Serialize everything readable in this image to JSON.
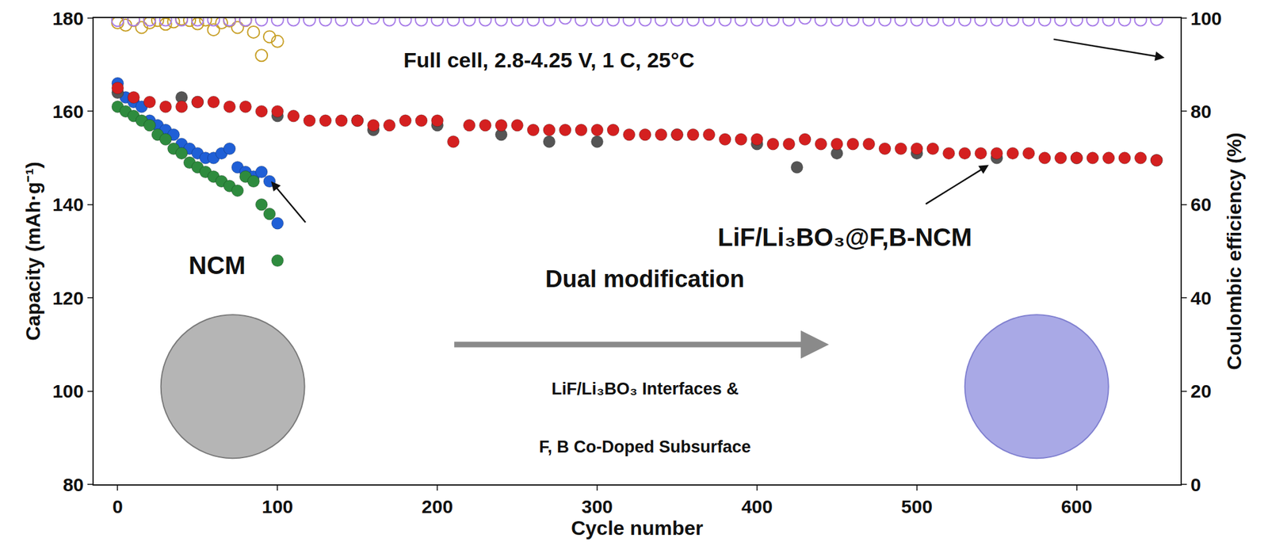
{
  "chart_data": {
    "type": "scatter",
    "x_label": "Cycle number",
    "y_label": "Capacity (mAh·g⁻¹)",
    "y2_label": "Coulombic efficiency (%)",
    "xlim": [
      -15,
      665
    ],
    "xticks": [
      0,
      100,
      200,
      300,
      400,
      500,
      600
    ],
    "ylim": [
      80,
      180
    ],
    "yticks": [
      80,
      100,
      120,
      140,
      160,
      180
    ],
    "y2lim": [
      0,
      100
    ],
    "y2ticks": [
      0,
      20,
      40,
      60,
      80,
      100
    ],
    "grid": false,
    "annotations": [
      {
        "text": "Full cell, 2.8-4.25 V, 1 C, 25°C"
      },
      {
        "text": "NCM"
      },
      {
        "text": "LiF/Li₃BO₃@F,B-NCM"
      },
      {
        "text": "Dual modification"
      },
      {
        "text": "LiF/Li₃BO₃ Interfaces &"
      },
      {
        "text": "F, B Co-Doped Subsurface"
      }
    ],
    "series": [
      {
        "color": "#1f5fd6",
        "marker": "circle",
        "axis": "y",
        "x": [
          0,
          5,
          10,
          15,
          20,
          25,
          30,
          35,
          40,
          45,
          50,
          55,
          60,
          65,
          70,
          75,
          80,
          85,
          90,
          95,
          100
        ],
        "values": [
          166,
          163,
          162,
          161,
          158,
          157,
          156,
          155,
          153,
          152,
          151,
          150,
          150,
          151,
          152,
          148,
          147,
          146,
          147,
          145,
          136
        ]
      },
      {
        "color": "#2e8b3e",
        "marker": "circle",
        "axis": "y",
        "x": [
          0,
          5,
          10,
          15,
          20,
          25,
          30,
          35,
          40,
          45,
          50,
          55,
          60,
          65,
          70,
          75,
          80,
          85,
          90,
          95,
          100
        ],
        "values": [
          161,
          160,
          159,
          158,
          157,
          155,
          154,
          152,
          151,
          149,
          148,
          147,
          146,
          145,
          144,
          143,
          146,
          145,
          140,
          138,
          128
        ]
      },
      {
        "color": "#555555",
        "marker": "circle",
        "axis": "y",
        "x": [
          0,
          40,
          50,
          100,
          150,
          160,
          200,
          240,
          270,
          300,
          350,
          400,
          425,
          450,
          500,
          550,
          600,
          650
        ],
        "values": [
          164,
          163,
          162,
          159,
          158,
          156,
          157,
          155,
          153.5,
          153.5,
          155,
          153,
          148,
          151,
          151,
          150,
          150,
          149.5
        ]
      },
      {
        "color": "#d42020",
        "marker": "circle",
        "axis": "y",
        "x": [
          0,
          10,
          20,
          30,
          40,
          50,
          60,
          70,
          80,
          90,
          100,
          110,
          120,
          130,
          140,
          150,
          160,
          170,
          180,
          190,
          200,
          210,
          220,
          230,
          240,
          250,
          260,
          270,
          280,
          290,
          300,
          310,
          320,
          330,
          340,
          350,
          360,
          370,
          380,
          390,
          400,
          410,
          420,
          430,
          440,
          450,
          460,
          470,
          480,
          490,
          500,
          510,
          520,
          530,
          540,
          550,
          560,
          570,
          580,
          590,
          600,
          610,
          620,
          630,
          640,
          650
        ],
        "values": [
          165,
          163,
          162,
          161,
          161,
          162,
          162,
          161,
          161,
          160,
          160,
          159,
          158,
          158,
          158,
          158,
          157,
          157,
          158,
          158,
          158,
          153.5,
          157,
          157,
          157,
          157,
          156,
          156,
          156,
          156,
          156,
          156,
          155,
          155,
          155,
          155,
          155,
          155,
          154,
          154,
          154,
          153,
          153,
          154,
          153,
          153,
          153,
          153,
          152,
          152,
          152,
          152,
          151,
          151,
          151,
          151,
          151,
          151,
          150,
          150,
          150,
          150,
          150,
          150,
          150,
          149.5
        ]
      },
      {
        "color": "#c8a028",
        "marker": "circle-open",
        "axis": "y2",
        "x": [
          0,
          5,
          10,
          15,
          20,
          25,
          30,
          35,
          40,
          45,
          50,
          55,
          60,
          65,
          70,
          75,
          80,
          85,
          90,
          95,
          100
        ],
        "values": [
          99,
          98.5,
          99.5,
          98,
          99,
          99.5,
          98.7,
          99.2,
          99.8,
          99.5,
          98.8,
          99.6,
          97.5,
          99,
          99.4,
          98,
          99.5,
          97,
          92,
          96,
          95
        ]
      },
      {
        "color": "#a87de8",
        "marker": "circle-open",
        "axis": "y2",
        "x": [
          0,
          10,
          20,
          30,
          40,
          50,
          60,
          70,
          80,
          90,
          100,
          110,
          120,
          130,
          140,
          150,
          160,
          170,
          180,
          190,
          200,
          210,
          220,
          230,
          240,
          250,
          260,
          270,
          280,
          290,
          300,
          310,
          320,
          330,
          340,
          350,
          360,
          370,
          380,
          390,
          400,
          410,
          420,
          430,
          440,
          450,
          460,
          470,
          480,
          490,
          500,
          510,
          520,
          530,
          540,
          550,
          560,
          570,
          580,
          590,
          600,
          610,
          620,
          630,
          640,
          650
        ],
        "values": [
          99.5,
          99.6,
          99.6,
          99.6,
          99.6,
          99.6,
          99.6,
          99.6,
          99.6,
          99.6,
          99.6,
          99.6,
          99.6,
          99.6,
          99.6,
          99.6,
          100,
          99.6,
          99.6,
          99.6,
          99.6,
          99.6,
          99.6,
          99.6,
          99.6,
          99.6,
          99.6,
          99.6,
          100,
          99.6,
          99.6,
          99.6,
          99.6,
          99.6,
          99.6,
          99.6,
          99.6,
          99.6,
          99.6,
          99.6,
          99.6,
          99.6,
          99.6,
          100,
          99.6,
          99.6,
          99.6,
          99.6,
          99.6,
          99.6,
          99.6,
          99.6,
          99.6,
          99.6,
          99.6,
          99.6,
          99.6,
          99.6,
          99.6,
          99.6,
          99.6,
          99.6,
          99.6,
          99.6,
          99.6,
          99.7
        ]
      }
    ]
  }
}
